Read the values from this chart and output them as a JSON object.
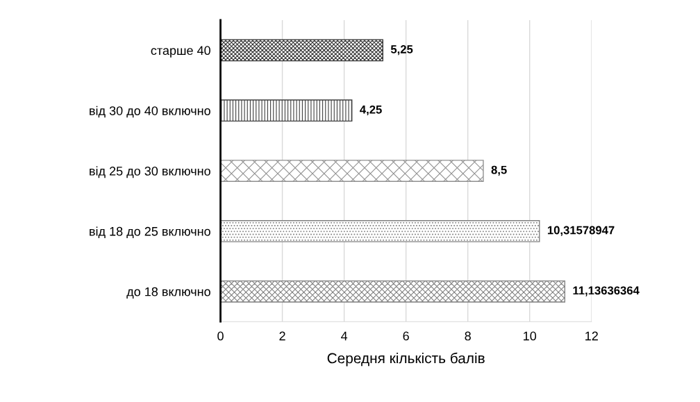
{
  "chart_data": {
    "type": "bar",
    "orientation": "horizontal",
    "xlabel": "Середня кількість балів",
    "categories": [
      "старше 40",
      "від 30 до 40 включно",
      "від 25 до 30 включно",
      "від 18 до 25 включно",
      "до 18 включно"
    ],
    "values": [
      5.25,
      4.25,
      8.5,
      10.31578947,
      11.13636364
    ],
    "value_labels": [
      "5,25",
      "4,25",
      "8,5",
      "10,31578947",
      "11,13636364"
    ],
    "colors": [
      "#303030",
      "#404040",
      "#909090",
      "#808080",
      "#808080"
    ],
    "xlim": [
      0,
      12
    ],
    "xticks": [
      0,
      2,
      4,
      6,
      8,
      10,
      12
    ],
    "grid": "x"
  }
}
